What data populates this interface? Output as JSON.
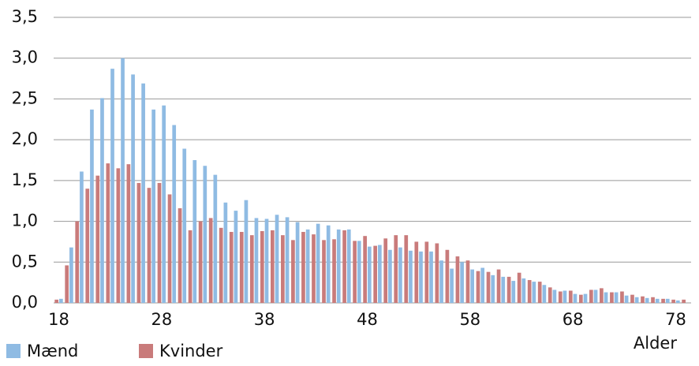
{
  "chart_data": {
    "type": "bar",
    "categories": [
      "18",
      null,
      null,
      null,
      null,
      null,
      null,
      null,
      null,
      null,
      "28",
      null,
      null,
      null,
      null,
      null,
      null,
      null,
      null,
      null,
      "38",
      null,
      null,
      null,
      null,
      null,
      null,
      null,
      null,
      null,
      "48",
      null,
      null,
      null,
      null,
      null,
      null,
      null,
      null,
      null,
      "58",
      null,
      null,
      null,
      null,
      null,
      null,
      null,
      null,
      null,
      "68",
      null,
      null,
      null,
      null,
      null,
      null,
      null,
      null,
      null,
      "78",
      null
    ],
    "series": [
      {
        "name": "Mænd",
        "color": "#8fbbe3",
        "values": [
          0.05,
          0.68,
          1.61,
          2.37,
          2.51,
          2.87,
          3.0,
          2.8,
          2.69,
          2.37,
          2.42,
          2.18,
          1.89,
          1.75,
          1.68,
          1.57,
          1.23,
          1.13,
          1.26,
          1.04,
          1.03,
          1.08,
          1.05,
          0.99,
          0.9,
          0.97,
          0.95,
          0.9,
          0.9,
          0.76,
          0.69,
          0.71,
          0.65,
          0.68,
          0.64,
          0.63,
          0.63,
          0.52,
          0.42,
          0.5,
          0.41,
          0.43,
          0.34,
          0.32,
          0.27,
          0.3,
          0.26,
          0.22,
          0.16,
          0.15,
          0.11,
          0.11,
          0.16,
          0.13,
          0.13,
          0.09,
          0.07,
          0.06,
          0.05,
          0.05,
          0.03,
          null
        ]
      },
      {
        "name": "Kvinder",
        "color": "#c97b7b",
        "values": [
          0.04,
          0.46,
          1.0,
          1.4,
          1.56,
          1.71,
          1.65,
          1.7,
          1.47,
          1.41,
          1.47,
          1.33,
          1.16,
          0.89,
          1.0,
          1.04,
          0.92,
          0.87,
          0.87,
          0.83,
          0.88,
          0.89,
          0.83,
          0.77,
          0.87,
          0.84,
          0.77,
          0.78,
          0.89,
          0.76,
          0.82,
          0.7,
          0.79,
          0.83,
          0.83,
          0.75,
          0.75,
          0.73,
          0.65,
          0.57,
          0.52,
          0.39,
          0.38,
          0.41,
          0.32,
          0.37,
          0.28,
          0.26,
          0.19,
          0.14,
          0.15,
          0.1,
          0.16,
          0.18,
          0.13,
          0.14,
          0.1,
          0.08,
          0.07,
          0.05,
          0.04,
          0.04
        ]
      }
    ],
    "x_label": "Alder",
    "ylim": [
      0,
      3.5
    ],
    "yticks": [
      {
        "value": 0,
        "label": "0,0"
      },
      {
        "value": 0.5,
        "label": "0,5"
      },
      {
        "value": 1,
        "label": "1,0"
      },
      {
        "value": 1.5,
        "label": "1,5"
      },
      {
        "value": 2,
        "label": "2,0"
      },
      {
        "value": 2.5,
        "label": "2,5"
      },
      {
        "value": 3,
        "label": "3,0"
      },
      {
        "value": 3.5,
        "label": "3,5"
      }
    ],
    "grid": true,
    "legend": "bottom-left"
  }
}
